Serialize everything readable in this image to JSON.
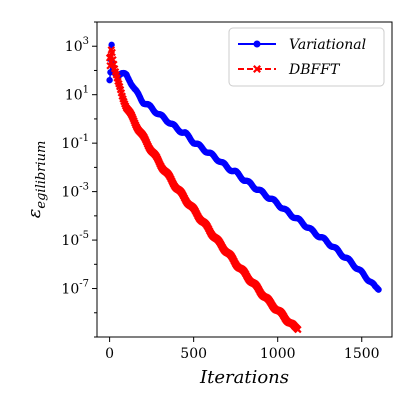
{
  "chart_data": {
    "type": "line",
    "xlabel": "Iterations",
    "ylabel": "ε_egilibrium",
    "ylabel_main": "ε",
    "ylabel_sub": "egilibrium",
    "x_ticks": [
      "0",
      "500",
      "1000",
      "1500"
    ],
    "y_ticks": [
      {
        "base": "10",
        "exp": "3"
      },
      {
        "base": "10",
        "exp": "1"
      },
      {
        "base": "10",
        "exp": "-1"
      },
      {
        "base": "10",
        "exp": "-3"
      },
      {
        "base": "10",
        "exp": "-5"
      },
      {
        "base": "10",
        "exp": "-7"
      }
    ],
    "xlim": [
      -75,
      1680
    ],
    "ylim_log10": [
      -9.0,
      4.0
    ],
    "yscale": "log",
    "grid": false,
    "legend_position": "top-right",
    "series": [
      {
        "name": "Variational",
        "color": "#0000ff",
        "marker": "circle",
        "linestyle": "solid",
        "points_log10": [
          [
            0,
            1.6
          ],
          [
            5,
            1.9
          ],
          [
            8,
            2.4
          ],
          [
            12,
            3.0
          ],
          [
            15,
            2.2
          ],
          [
            20,
            2.0
          ],
          [
            25,
            1.9
          ],
          [
            30,
            1.88
          ],
          [
            50,
            1.85
          ],
          [
            70,
            1.87
          ],
          [
            100,
            1.8
          ],
          [
            120,
            1.6
          ],
          [
            150,
            1.2
          ],
          [
            200,
            0.7
          ],
          [
            250,
            0.45
          ],
          [
            300,
            0.15
          ],
          [
            350,
            -0.1
          ],
          [
            400,
            -0.4
          ],
          [
            450,
            -0.6
          ],
          [
            500,
            -0.95
          ],
          [
            550,
            -1.2
          ],
          [
            600,
            -1.45
          ],
          [
            650,
            -1.7
          ],
          [
            700,
            -2.0
          ],
          [
            750,
            -2.2
          ],
          [
            800,
            -2.5
          ],
          [
            850,
            -2.75
          ],
          [
            900,
            -3.0
          ],
          [
            950,
            -3.25
          ],
          [
            1000,
            -3.5
          ],
          [
            1050,
            -3.8
          ],
          [
            1100,
            -4.05
          ],
          [
            1150,
            -4.3
          ],
          [
            1200,
            -4.6
          ],
          [
            1250,
            -4.85
          ],
          [
            1300,
            -5.1
          ],
          [
            1350,
            -5.4
          ],
          [
            1400,
            -5.7
          ],
          [
            1450,
            -6.0
          ],
          [
            1500,
            -6.35
          ],
          [
            1550,
            -6.7
          ],
          [
            1580,
            -6.95
          ],
          [
            1600,
            -7.0
          ]
        ]
      },
      {
        "name": "DBFFT",
        "color": "#ff0000",
        "marker": "x",
        "linestyle": "dashed",
        "points_log10": [
          [
            0,
            2.5
          ],
          [
            3,
            2.2
          ],
          [
            6,
            2.6
          ],
          [
            10,
            2.9
          ],
          [
            15,
            2.8
          ],
          [
            20,
            2.5
          ],
          [
            30,
            2.1
          ],
          [
            50,
            1.5
          ],
          [
            75,
            0.95
          ],
          [
            100,
            0.5
          ],
          [
            150,
            -0.15
          ],
          [
            200,
            -0.75
          ],
          [
            250,
            -1.3
          ],
          [
            300,
            -1.85
          ],
          [
            350,
            -2.35
          ],
          [
            400,
            -2.85
          ],
          [
            450,
            -3.3
          ],
          [
            500,
            -3.75
          ],
          [
            550,
            -4.2
          ],
          [
            600,
            -4.65
          ],
          [
            650,
            -5.1
          ],
          [
            700,
            -5.5
          ],
          [
            750,
            -5.95
          ],
          [
            800,
            -6.35
          ],
          [
            850,
            -6.75
          ],
          [
            900,
            -7.15
          ],
          [
            950,
            -7.55
          ],
          [
            1000,
            -7.9
          ],
          [
            1050,
            -8.25
          ],
          [
            1100,
            -8.6
          ],
          [
            1120,
            -8.65
          ]
        ]
      }
    ]
  }
}
